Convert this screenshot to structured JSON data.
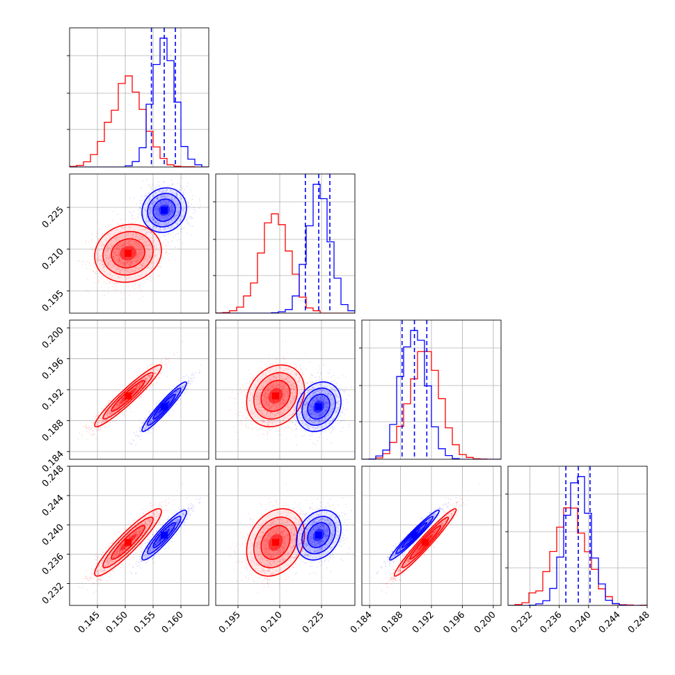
{
  "chart_data": {
    "type": "corner",
    "grid": true,
    "series": [
      {
        "name": "",
        "color": "#ff0000",
        "mean": [
          0.1505,
          0.2085,
          0.1912,
          0.2376
        ],
        "sd": [
          0.003,
          0.0052,
          0.002,
          0.0023
        ],
        "corr": [
          [
            1,
            0,
            0
          ],
          [
            0.95,
            0.3
          ],
          [
            0.95,
            0.3,
            0.97
          ]
        ],
        "label_marks": "none"
      },
      {
        "name": "",
        "color": "#0000ff",
        "mean": [
          0.157,
          0.224,
          0.1898,
          0.2386
        ],
        "sd": [
          0.002,
          0.004,
          0.0016,
          0.0017
        ],
        "corr": [
          [
            1,
            0,
            0
          ],
          [
            0.95,
            0.3
          ],
          [
            0.95,
            0.3,
            0.97
          ]
        ],
        "quantiles_shown": true
      }
    ],
    "params": [
      {
        "xlim": [
          0.14,
          0.165
        ],
        "ticks": [
          0.145,
          0.15,
          0.155,
          0.16
        ],
        "tick_labels": [
          "0.145",
          "0.150",
          "0.155",
          "0.160"
        ]
      },
      {
        "xlim": [
          0.187,
          0.237
        ],
        "ticks": [
          0.195,
          0.21,
          0.225
        ],
        "tick_labels": [
          "0.195",
          "0.210",
          "0.225"
        ]
      },
      {
        "xlim": [
          0.183,
          0.201
        ],
        "ticks": [
          0.184,
          0.188,
          0.192,
          0.196,
          0.2
        ],
        "tick_labels": [
          "0.184",
          "0.188",
          "0.192",
          "0.196",
          "0.200"
        ]
      },
      {
        "xlim": [
          0.229,
          0.248
        ],
        "ticks": [
          0.232,
          0.236,
          0.24,
          0.244,
          0.248
        ],
        "tick_labels": [
          "0.232",
          "0.236",
          "0.240",
          "0.244",
          "0.248"
        ]
      }
    ],
    "quantile_lines": [
      [
        0.1547,
        0.157,
        0.159
      ],
      [
        0.2192,
        0.224,
        0.228
      ],
      [
        0.1882,
        0.1898,
        0.1914
      ],
      [
        0.2369,
        0.2386,
        0.2402
      ]
    ]
  }
}
